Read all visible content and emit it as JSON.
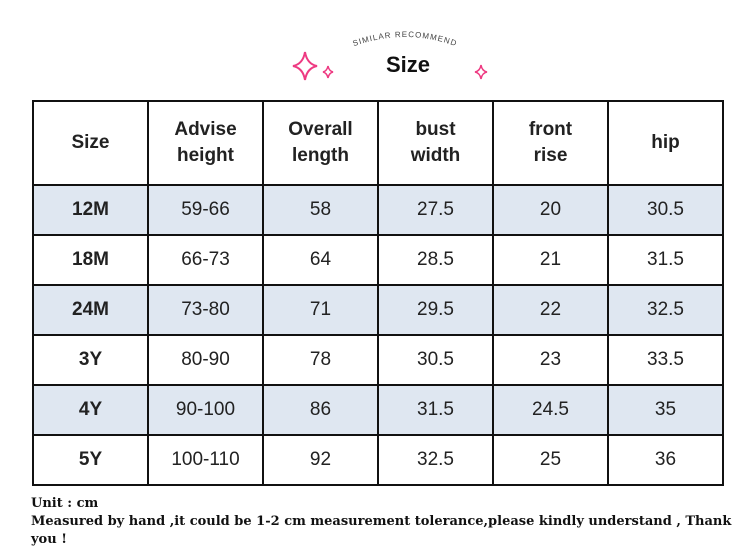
{
  "header": {
    "subtitle": "SIMILAR RECOMMEND",
    "title": "Size"
  },
  "table": {
    "columns": [
      "Size",
      "Advise height",
      "Overall length",
      "bust width",
      "front rise",
      "hip"
    ],
    "rows": [
      [
        "12M",
        "59-66",
        "58",
        "27.5",
        "20",
        "30.5"
      ],
      [
        "18M",
        "66-73",
        "64",
        "28.5",
        "21",
        "31.5"
      ],
      [
        "24M",
        "73-80",
        "71",
        "29.5",
        "22",
        "32.5"
      ],
      [
        "3Y",
        "80-90",
        "78",
        "30.5",
        "23",
        "33.5"
      ],
      [
        "4Y",
        "90-100",
        "86",
        "31.5",
        "24.5",
        "35"
      ],
      [
        "5Y",
        "100-110",
        "92",
        "32.5",
        "25",
        "36"
      ]
    ]
  },
  "notes": [
    "Unit : cm",
    "Measured by hand ,it could be 1-2 cm measurement tolerance,please kindly understand , Thank you !"
  ]
}
